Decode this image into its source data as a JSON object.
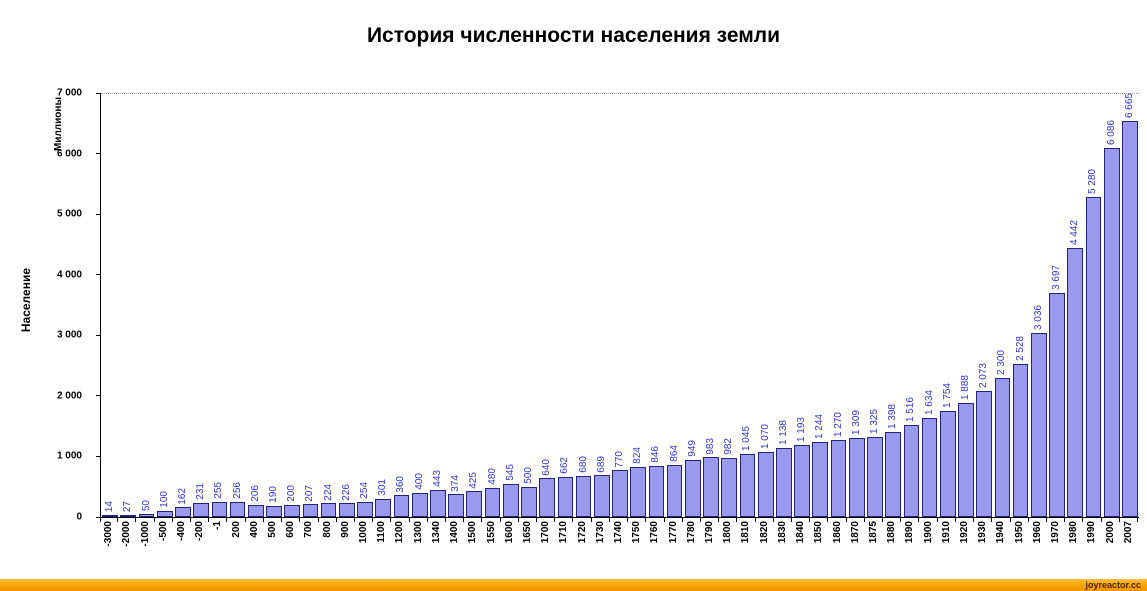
{
  "title": "История численности населения земли",
  "y_axis": {
    "units_label": "Миллионы",
    "axis_title": "Население",
    "ticks": [
      "0",
      "1 000",
      "2 000",
      "3 000",
      "4 000",
      "5 000",
      "6 000",
      "7 000"
    ]
  },
  "watermark": {
    "text": "joyreactor.cc"
  },
  "chart_data": {
    "type": "bar",
    "title": "История численности населения земли",
    "xlabel": "",
    "ylabel": "Население",
    "y_units": "Миллионы",
    "ylim": [
      0,
      7000
    ],
    "ytick_interval": 1000,
    "grid": "single dotted gridline at 7000",
    "legend": "none",
    "bar_color": "#9999ee",
    "bar_border_color": "#23237a",
    "value_label_color": "#3333cc",
    "categories": [
      "-3000",
      "-2000",
      "-1000",
      "-500",
      "-400",
      "-200",
      "-1",
      "200",
      "400",
      "500",
      "600",
      "700",
      "800",
      "900",
      "1000",
      "1100",
      "1200",
      "1300",
      "1340",
      "1400",
      "1500",
      "1550",
      "1600",
      "1650",
      "1700",
      "1710",
      "1720",
      "1730",
      "1740",
      "1750",
      "1760",
      "1770",
      "1780",
      "1790",
      "1800",
      "1810",
      "1820",
      "1830",
      "1840",
      "1850",
      "1860",
      "1870",
      "1875",
      "1880",
      "1890",
      "1900",
      "1910",
      "1920",
      "1930",
      "1940",
      "1950",
      "1960",
      "1970",
      "1980",
      "1990",
      "2000",
      "2007"
    ],
    "values": [
      14,
      27,
      50,
      100,
      162,
      231,
      255,
      256,
      206,
      190,
      200,
      207,
      224,
      226,
      254,
      301,
      360,
      400,
      443,
      374,
      425,
      480,
      545,
      500,
      640,
      662,
      680,
      689,
      770,
      824,
      846,
      864,
      949,
      983,
      982,
      1045,
      1070,
      1138,
      1193,
      1244,
      1270,
      1309,
      1325,
      1398,
      1516,
      1634,
      1754,
      1888,
      2073,
      2300,
      2528,
      3036,
      3697,
      4442,
      5280,
      6086,
      6665
    ],
    "value_labels": [
      "14",
      "27",
      "50",
      "100",
      "162",
      "231",
      "255",
      "256",
      "206",
      "190",
      "200",
      "207",
      "224",
      "226",
      "254",
      "301",
      "360",
      "400",
      "443",
      "374",
      "425",
      "480",
      "545",
      "500",
      "640",
      "662",
      "680",
      "689",
      "770",
      "824",
      "846",
      "864",
      "949",
      "983",
      "982",
      "1 045",
      "1 070",
      "1 138",
      "1 193",
      "1 244",
      "1 270",
      "1 309",
      "1 325",
      "1 398",
      "1 516",
      "1 634",
      "1 754",
      "1 888",
      "2 073",
      "2 300",
      "2 528",
      "3 036",
      "3 697",
      "4 442",
      "5 280",
      "6 086",
      "6 665"
    ]
  }
}
